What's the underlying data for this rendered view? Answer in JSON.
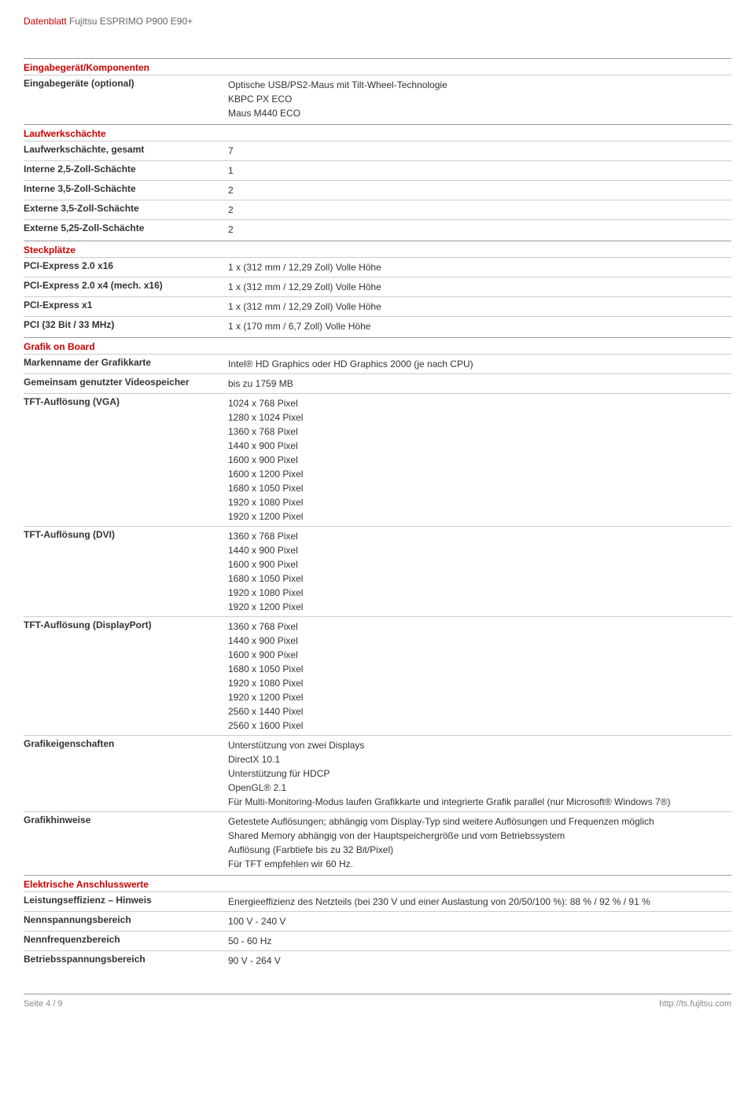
{
  "header": {
    "label": "Datenblatt",
    "product": "Fujitsu  ESPRIMO P900 E90+"
  },
  "sections": [
    {
      "title": "Eingabegerät/Komponenten",
      "rows": [
        {
          "label": "Eingabegeräte (optional)",
          "values": [
            "Optische USB/PS2-Maus mit Tilt-Wheel-Technologie",
            "KBPC PX ECO",
            "Maus M440 ECO"
          ]
        }
      ]
    },
    {
      "title": "Laufwerkschächte",
      "rows": [
        {
          "label": "Laufwerkschächte, gesamt",
          "values": [
            "7"
          ]
        },
        {
          "label": "Interne 2,5-Zoll-Schächte",
          "values": [
            "1"
          ]
        },
        {
          "label": "Interne 3,5-Zoll-Schächte",
          "values": [
            "2"
          ]
        },
        {
          "label": "Externe 3,5-Zoll-Schächte",
          "values": [
            "2"
          ]
        },
        {
          "label": "Externe 5,25-Zoll-Schächte",
          "values": [
            "2"
          ]
        }
      ]
    },
    {
      "title": "Steckplätze",
      "rows": [
        {
          "label": "PCI-Express 2.0 x16",
          "values": [
            "1 x (312 mm / 12,29 Zoll) Volle Höhe"
          ]
        },
        {
          "label": "PCI-Express 2.0 x4 (mech. x16)",
          "values": [
            "1 x (312 mm / 12,29 Zoll) Volle Höhe"
          ]
        },
        {
          "label": "PCI-Express x1",
          "values": [
            "1 x (312 mm / 12,29 Zoll) Volle Höhe"
          ]
        },
        {
          "label": "PCI (32 Bit / 33 MHz)",
          "values": [
            "1 x (170 mm / 6,7 Zoll) Volle Höhe"
          ]
        }
      ]
    },
    {
      "title": "Grafik on Board",
      "rows": [
        {
          "label": "Markenname der Grafikkarte",
          "values": [
            "Intel® HD Graphics oder HD Graphics 2000 (je nach CPU)"
          ]
        },
        {
          "label": "Gemeinsam genutzter Videospeicher",
          "values": [
            "bis zu 1759  MB"
          ]
        },
        {
          "label": "TFT-Auflösung (VGA)",
          "values": [
            "1024 x 768 Pixel",
            "1280 x 1024 Pixel",
            "1360 x 768 Pixel",
            "1440 x 900 Pixel",
            "1600 x 900 Pixel",
            "1600 x 1200 Pixel",
            "1680 x 1050 Pixel",
            "1920 x 1080 Pixel",
            "1920 x 1200 Pixel"
          ]
        },
        {
          "label": "TFT-Auflösung (DVI)",
          "values": [
            "1360 x 768 Pixel",
            "1440 x 900 Pixel",
            "1600 x 900 Pixel",
            "1680 x 1050 Pixel",
            "1920 x 1080 Pixel",
            "1920 x 1200 Pixel"
          ]
        },
        {
          "label": "TFT-Auflösung (DisplayPort)",
          "values": [
            "1360 x 768 Pixel",
            "1440 x 900 Pixel",
            "1600 x 900 Pixel",
            "1680 x 1050 Pixel",
            "1920 x 1080 Pixel",
            "1920 x 1200 Pixel",
            "2560 x 1440 Pixel",
            "2560 x 1600 Pixel"
          ]
        },
        {
          "label": "Grafikeigenschaften",
          "values": [
            "Unterstützung von zwei Displays",
            "DirectX 10.1",
            "Unterstützung für HDCP",
            "OpenGL® 2.1",
            "Für Multi-Monitoring-Modus laufen Grafikkarte und integrierte Grafik parallel (nur Microsoft® Windows 7®)"
          ]
        },
        {
          "label": "Grafikhinweise",
          "values": [
            "Getestete Auflösungen; abhängig vom Display-Typ sind weitere Auflösungen und Frequenzen möglich",
            "Shared Memory abhängig von der Hauptspeichergröße und vom Betriebssystem",
            "Auflösung (Farbtiefe bis zu 32 Bit/Pixel)",
            "Für TFT empfehlen wir 60 Hz."
          ]
        }
      ]
    },
    {
      "title": "Elektrische Anschlusswerte",
      "rows": [
        {
          "label": "Leistungseffizienz – Hinweis",
          "values": [
            "Energieeffizienz des Netzteils (bei 230 V und einer Auslastung von 20/50/100 %): 88 % / 92 % / 91 %"
          ]
        },
        {
          "label": "Nennspannungsbereich",
          "values": [
            "100 V - 240 V"
          ]
        },
        {
          "label": "Nennfrequenzbereich",
          "values": [
            "50 - 60 Hz"
          ]
        },
        {
          "label": "Betriebsspannungsbereich",
          "values": [
            "90 V - 264 V"
          ]
        }
      ]
    }
  ],
  "footer": {
    "page": "Seite 4 / 9",
    "url": "http://ts.fujitsu.com"
  },
  "colors": {
    "accent": "#c00",
    "text": "#333",
    "muted": "#888",
    "rule_strong": "#999",
    "rule_light": "#ccc",
    "background": "#ffffff"
  }
}
